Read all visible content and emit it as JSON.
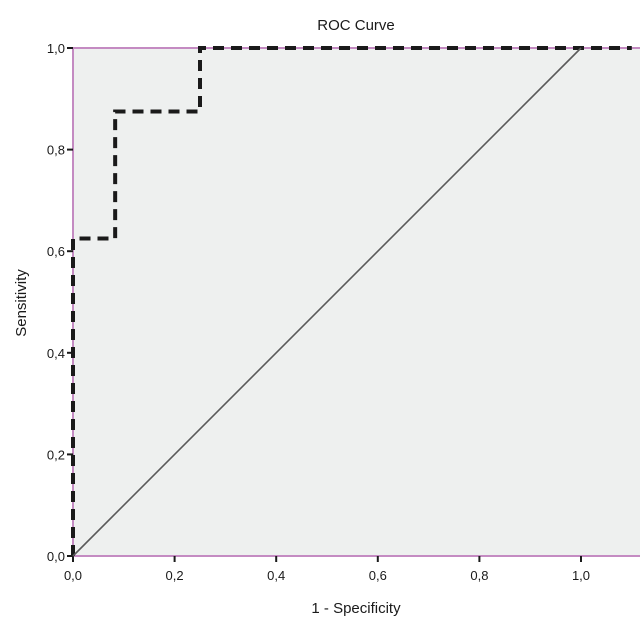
{
  "chart_data": {
    "type": "line",
    "title": "ROC Curve",
    "xlabel": "1 - Specificity",
    "ylabel": "Sensitivity",
    "xlim": [
      0,
      1.1
    ],
    "ylim": [
      0,
      1
    ],
    "x_ticks": [
      "0,0",
      "0,2",
      "0,4",
      "0,6",
      "0,8",
      "1,0"
    ],
    "y_ticks": [
      "0,0",
      "0,2",
      "0,4",
      "0,6",
      "0,8",
      "1,0"
    ],
    "grid": false,
    "legend": "none",
    "colors": {
      "plot_background": "#eef0ef",
      "frame": "#c48bc2",
      "roc_line": "#1a1a1a",
      "reference_line": "#5a5a5a"
    },
    "series": [
      {
        "style": "dashed-step",
        "x": [
          0,
          0,
          0.083,
          0.083,
          0.25,
          0.25,
          1.1
        ],
        "y": [
          0,
          0.625,
          0.625,
          0.875,
          0.875,
          1.0,
          1.0
        ]
      },
      {
        "style": "solid-diagonal",
        "x": [
          0,
          1.0
        ],
        "y": [
          0,
          1.0
        ]
      }
    ]
  }
}
